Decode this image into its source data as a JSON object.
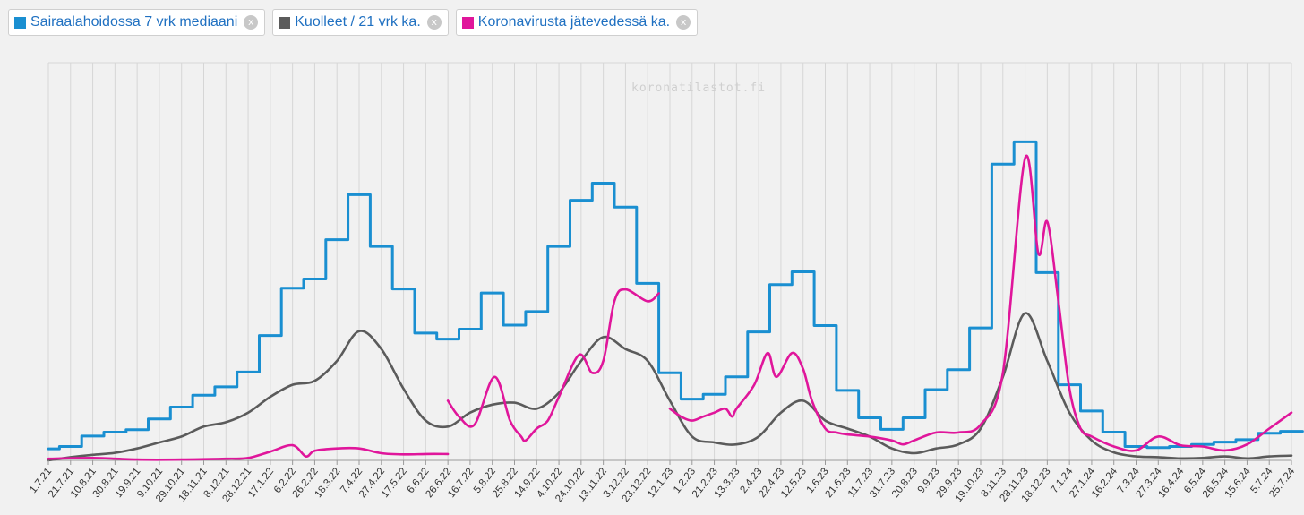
{
  "legend": {
    "items": [
      {
        "label": "Sairaalahoidossa 7 vrk mediaani",
        "color": "#1a8fd1"
      },
      {
        "label": "Kuolleet / 21 vrk ka.",
        "color": "#5b5b5b"
      },
      {
        "label": "Koronavirusta jätevedessä ka.",
        "color": "#e0169b"
      }
    ],
    "close_glyph": "x"
  },
  "watermark": "koronatilastot.fi",
  "chart_data": {
    "type": "line",
    "title": "",
    "xlabel": "",
    "ylabel": "",
    "grid": true,
    "legend_position": "top-left",
    "ylim": [
      0,
      100
    ],
    "categories": [
      "1.7.21",
      "21.7.21",
      "10.8.21",
      "30.8.21",
      "19.9.21",
      "9.10.21",
      "29.10.21",
      "18.11.21",
      "8.12.21",
      "28.12.21",
      "17.1.22",
      "6.2.22",
      "26.2.22",
      "18.3.22",
      "7.4.22",
      "27.4.22",
      "17.5.22",
      "6.6.22",
      "26.6.22",
      "16.7.22",
      "5.8.22",
      "25.8.22",
      "14.9.22",
      "4.10.22",
      "24.10.22",
      "13.11.22",
      "3.12.22",
      "23.12.22",
      "12.1.23",
      "1.2.23",
      "21.2.23",
      "13.3.23",
      "2.4.23",
      "22.4.23",
      "12.5.23",
      "1.6.23",
      "21.6.23",
      "11.7.23",
      "31.7.23",
      "20.8.23",
      "9.9.23",
      "29.9.23",
      "19.10.23",
      "8.11.23",
      "28.11.23",
      "18.12.23",
      "7.1.24",
      "27.1.24",
      "16.2.24",
      "7.3.24",
      "27.3.24",
      "16.4.24",
      "6.5.24",
      "26.5.24",
      "15.6.24",
      "5.7.24",
      "25.7.24"
    ],
    "series": [
      {
        "name": "Sairaalahoidossa 7 vrk mediaani",
        "style": "step",
        "values": [
          [
            0,
            2.9
          ],
          [
            1,
            3.5
          ],
          [
            2,
            6.1
          ],
          [
            3,
            7.1
          ],
          [
            4,
            7.7
          ],
          [
            5,
            10.4
          ],
          [
            6,
            13.4
          ],
          [
            7,
            16.4
          ],
          [
            8,
            18.5
          ],
          [
            9,
            22.2
          ],
          [
            10,
            31.4
          ],
          [
            11,
            43.3
          ],
          [
            12,
            45.6
          ],
          [
            13,
            55.5
          ],
          [
            14,
            66.8
          ],
          [
            15,
            53.8
          ],
          [
            16,
            43.1
          ],
          [
            17,
            32.0
          ],
          [
            18,
            30.5
          ],
          [
            19,
            33.0
          ],
          [
            20,
            42.1
          ],
          [
            21,
            34.0
          ],
          [
            22,
            37.4
          ],
          [
            23,
            53.8
          ],
          [
            24,
            65.4
          ],
          [
            25,
            69.7
          ],
          [
            26,
            63.7
          ],
          [
            27,
            44.5
          ],
          [
            28,
            22.0
          ],
          [
            29,
            15.4
          ],
          [
            30,
            16.6
          ],
          [
            31,
            21.0
          ],
          [
            32,
            32.3
          ],
          [
            33,
            44.2
          ],
          [
            34,
            47.4
          ],
          [
            35,
            33.9
          ],
          [
            36,
            17.6
          ],
          [
            37,
            10.7
          ],
          [
            38,
            7.8
          ],
          [
            39,
            10.7
          ],
          [
            40,
            17.8
          ],
          [
            41,
            22.8
          ],
          [
            42,
            33.3
          ],
          [
            43,
            74.5
          ],
          [
            44,
            80.1
          ],
          [
            45,
            47.2
          ],
          [
            46,
            19.0
          ],
          [
            47,
            12.4
          ],
          [
            48,
            7.1
          ],
          [
            49,
            3.5
          ],
          [
            50,
            3.2
          ],
          [
            51,
            3.5
          ],
          [
            52,
            4.0
          ],
          [
            53,
            4.6
          ],
          [
            54,
            5.2
          ],
          [
            55,
            6.8
          ],
          [
            56,
            7.3
          ]
        ]
      },
      {
        "name": "Kuolleet / 21 vrk ka.",
        "style": "smooth",
        "values": [
          [
            0,
            0.0
          ],
          [
            1,
            0.8
          ],
          [
            2,
            1.4
          ],
          [
            3,
            1.9
          ],
          [
            4,
            3.0
          ],
          [
            5,
            4.5
          ],
          [
            6,
            6.0
          ],
          [
            7,
            8.5
          ],
          [
            8,
            9.6
          ],
          [
            9,
            12.0
          ],
          [
            10,
            16.0
          ],
          [
            11,
            19.0
          ],
          [
            12,
            20.0
          ],
          [
            13,
            25.0
          ],
          [
            14,
            32.5
          ],
          [
            15,
            28.0
          ],
          [
            16,
            18.0
          ],
          [
            17,
            10.0
          ],
          [
            18,
            8.5
          ],
          [
            19,
            12.0
          ],
          [
            20,
            14.0
          ],
          [
            21,
            14.5
          ],
          [
            22,
            13.0
          ],
          [
            23,
            17.0
          ],
          [
            24,
            25.0
          ],
          [
            25,
            31.0
          ],
          [
            26,
            28.0
          ],
          [
            27,
            25.0
          ],
          [
            28,
            15.0
          ],
          [
            29,
            6.0
          ],
          [
            30,
            4.5
          ],
          [
            31,
            4.0
          ],
          [
            32,
            6.0
          ],
          [
            33,
            12.0
          ],
          [
            34,
            15.0
          ],
          [
            35,
            10.0
          ],
          [
            36,
            8.0
          ],
          [
            37,
            6.0
          ],
          [
            38,
            3.0
          ],
          [
            39,
            1.8
          ],
          [
            40,
            3.0
          ],
          [
            41,
            4.0
          ],
          [
            42,
            8.0
          ],
          [
            43,
            21.0
          ],
          [
            44,
            37.0
          ],
          [
            45,
            25.0
          ],
          [
            46,
            12.0
          ],
          [
            47,
            5.0
          ],
          [
            48,
            2.0
          ],
          [
            49,
            1.0
          ],
          [
            50,
            0.8
          ],
          [
            51,
            0.5
          ],
          [
            52,
            0.6
          ],
          [
            53,
            1.0
          ],
          [
            54,
            0.5
          ],
          [
            55,
            1.0
          ],
          [
            56,
            1.2
          ]
        ]
      },
      {
        "name": "Koronavirusta jätevedessä ka.",
        "style": "smooth",
        "segments": [
          [
            [
              0,
              0.4
            ],
            [
              2,
              0.6
            ],
            [
              4,
              0.2
            ],
            [
              6,
              0.2
            ],
            [
              8,
              0.4
            ],
            [
              9,
              0.6
            ],
            [
              10,
              2.2
            ],
            [
              11,
              3.8
            ],
            [
              11.6,
              1.0
            ],
            [
              12,
              2.4
            ],
            [
              13,
              3.0
            ],
            [
              14,
              3.0
            ],
            [
              15,
              1.8
            ],
            [
              16,
              1.5
            ],
            [
              17,
              1.6
            ],
            [
              18,
              1.6
            ]
          ],
          [
            [
              18,
              15.0
            ],
            [
              18.5,
              11.0
            ],
            [
              19.2,
              9.0
            ],
            [
              20.1,
              21.0
            ],
            [
              20.8,
              10.0
            ],
            [
              21.3,
              6.0
            ],
            [
              21.5,
              5.0
            ],
            [
              22,
              8.0
            ],
            [
              22.5,
              10.0
            ],
            [
              23,
              16.0
            ],
            [
              23.9,
              26.5
            ],
            [
              24.5,
              22.0
            ],
            [
              25,
              25.0
            ],
            [
              25.5,
              40.0
            ],
            [
              26,
              43.0
            ],
            [
              27,
              40.0
            ],
            [
              27.5,
              42.0
            ]
          ],
          [
            [
              28,
              13.0
            ],
            [
              28.5,
              11.0
            ],
            [
              29,
              10.0
            ],
            [
              29.5,
              11.0
            ],
            [
              30,
              12.0
            ],
            [
              30.5,
              13.0
            ],
            [
              30.8,
              11.0
            ],
            [
              31,
              13.0
            ],
            [
              31.8,
              19.0
            ],
            [
              32.4,
              27.0
            ],
            [
              32.8,
              21.0
            ],
            [
              33.5,
              27.0
            ],
            [
              34,
              23.0
            ],
            [
              34.4,
              15.0
            ],
            [
              35,
              8.0
            ],
            [
              35.5,
              7.0
            ],
            [
              36,
              6.5
            ],
            [
              37,
              6.0
            ],
            [
              38,
              5.0
            ],
            [
              38.5,
              4.0
            ],
            [
              39,
              5.0
            ],
            [
              40,
              7.0
            ],
            [
              41,
              7.0
            ],
            [
              42,
              9.0
            ],
            [
              43,
              22.0
            ],
            [
              44,
              76.0
            ],
            [
              44.6,
              52.0
            ],
            [
              45,
              60.0
            ],
            [
              45.5,
              40.0
            ],
            [
              46,
              18.0
            ],
            [
              46.5,
              8.0
            ],
            [
              47,
              6.0
            ],
            [
              48,
              3.5
            ],
            [
              49,
              2.5
            ],
            [
              50,
              6.0
            ],
            [
              51,
              3.8
            ],
            [
              52,
              3.5
            ],
            [
              53,
              2.5
            ],
            [
              54,
              4.0
            ],
            [
              55,
              8.0
            ],
            [
              56,
              12.0
            ]
          ]
        ]
      }
    ]
  }
}
